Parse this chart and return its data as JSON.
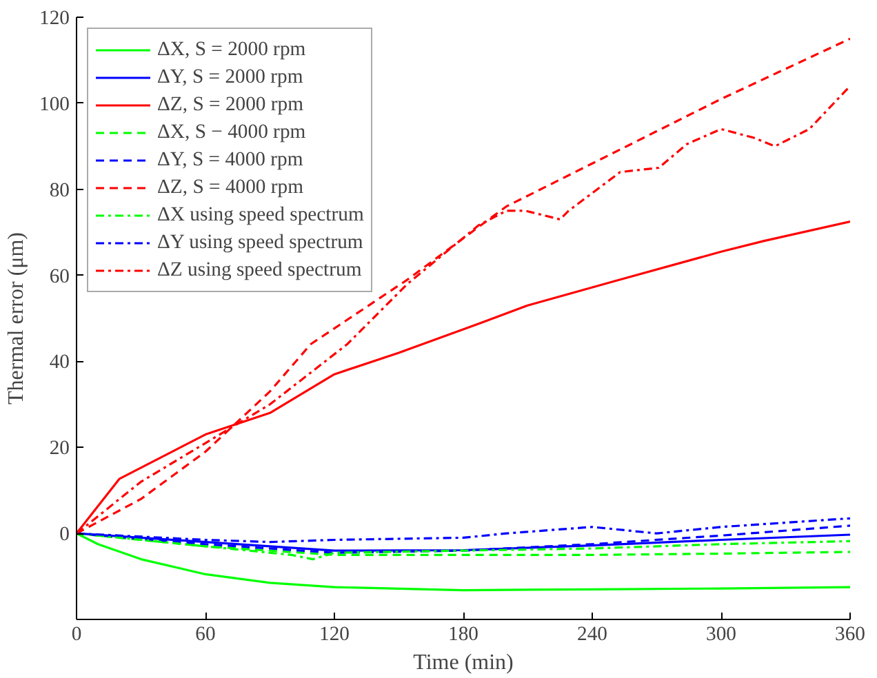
{
  "chart_data": {
    "type": "line",
    "xlabel": "Time (min)",
    "ylabel": "Thermal error (μm)",
    "xlim": [
      0,
      360
    ],
    "ylim": [
      -20,
      120
    ],
    "xticks": [
      0,
      60,
      120,
      180,
      240,
      300,
      360
    ],
    "yticks": [
      0,
      20,
      40,
      60,
      80,
      100,
      120
    ],
    "grid": false,
    "legend": "top left",
    "series": [
      {
        "name": "ΔX, S = 2000 rpm",
        "color": "#00ff00",
        "line_style": "solid",
        "x": [
          0,
          10,
          30,
          60,
          90,
          120,
          180,
          240,
          300,
          360
        ],
        "values": [
          0,
          -2.5,
          -6,
          -9.5,
          -11.5,
          -12.5,
          -13.2,
          -13,
          -12.8,
          -12.5
        ]
      },
      {
        "name": "ΔY, S = 2000 rpm",
        "color": "#0000ff",
        "line_style": "solid",
        "x": [
          0,
          60,
          120,
          180,
          240,
          300,
          360
        ],
        "values": [
          0,
          -2,
          -4,
          -3.9,
          -2.8,
          -1.5,
          -0.3
        ]
      },
      {
        "name": "ΔZ, S = 2000 rpm",
        "color": "#ff0000",
        "line_style": "solid",
        "x": [
          0,
          20,
          60,
          90,
          120,
          150,
          187,
          210,
          253,
          300,
          320,
          360
        ],
        "values": [
          0,
          12.7,
          23,
          28,
          37,
          42,
          48.7,
          53,
          59,
          65.5,
          68,
          72.5
        ]
      },
      {
        "name": "ΔX, S − 4000 rpm",
        "color": "#00ff00",
        "line_style": "dashed",
        "x": [
          0,
          60,
          120,
          180,
          240,
          300,
          360
        ],
        "values": [
          0,
          -3,
          -5,
          -5,
          -5,
          -4.7,
          -4.3
        ]
      },
      {
        "name": "ΔY, S = 4000 rpm",
        "color": "#0000ff",
        "line_style": "dashed",
        "x": [
          0,
          60,
          120,
          180,
          240,
          300,
          360
        ],
        "values": [
          0,
          -2.5,
          -4.5,
          -4,
          -2.5,
          -0.5,
          1.8
        ]
      },
      {
        "name": "ΔZ, S = 4000 rpm",
        "color": "#ff0000",
        "line_style": "dashed",
        "x": [
          0,
          30,
          60,
          90,
          109,
          154,
          200,
          240,
          300,
          360
        ],
        "values": [
          0,
          8,
          19,
          33,
          44,
          59,
          76,
          86,
          101,
          115
        ]
      },
      {
        "name": "ΔX using speed spectrum",
        "color": "#00ff00",
        "line_style": "dashdot",
        "x": [
          0,
          60,
          100,
          110,
          120,
          180,
          240,
          300,
          360
        ],
        "values": [
          0,
          -3,
          -5,
          -6,
          -4.5,
          -4,
          -3.5,
          -2.5,
          -1.8
        ]
      },
      {
        "name": "ΔY using speed spectrum",
        "color": "#0000ff",
        "line_style": "dashdot",
        "x": [
          0,
          60,
          90,
          120,
          180,
          200,
          240,
          250,
          270,
          300,
          330,
          360
        ],
        "values": [
          0,
          -1.5,
          -2,
          -1.5,
          -1,
          0,
          1.5,
          1,
          0,
          1.5,
          2.5,
          3.5
        ]
      },
      {
        "name": "ΔZ using speed spectrum",
        "color": "#ff0000",
        "line_style": "dashdot",
        "x": [
          0,
          30,
          60,
          90,
          126,
          154,
          187,
          200,
          209,
          225,
          229,
          253,
          271,
          284,
          300,
          315,
          325,
          341,
          360
        ],
        "values": [
          0,
          12,
          21,
          30,
          44,
          58,
          71.6,
          75,
          75,
          73,
          75,
          84,
          85,
          90.5,
          94,
          92,
          90,
          94,
          104
        ]
      }
    ]
  }
}
